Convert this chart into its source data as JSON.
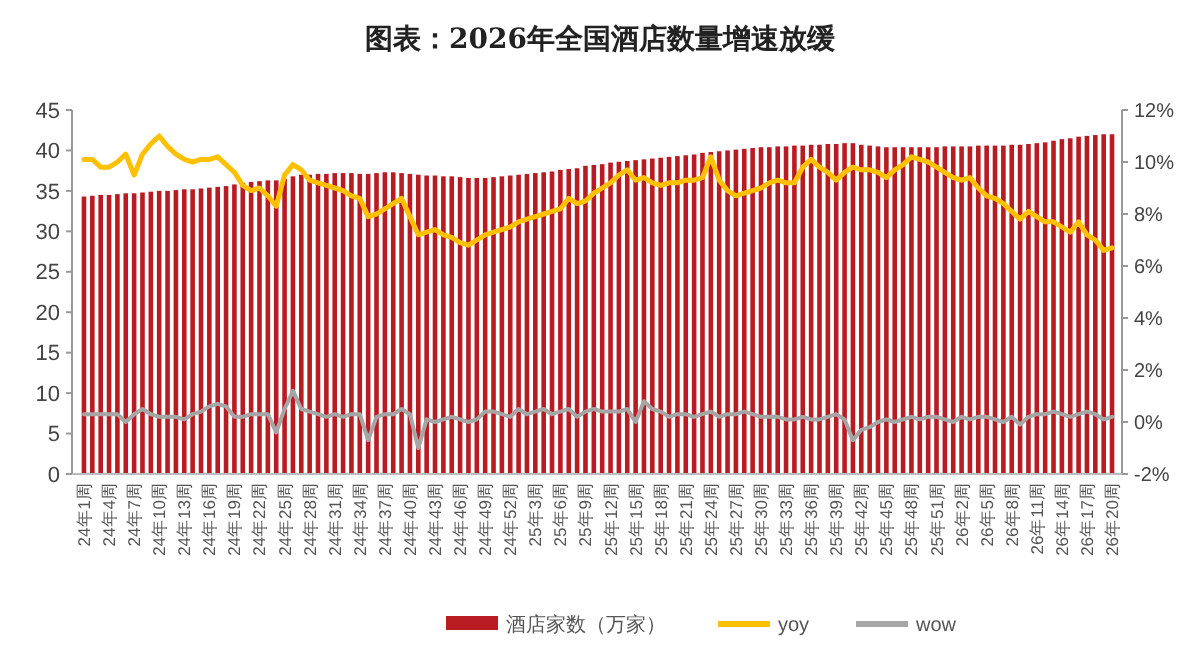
{
  "chart_data": {
    "type": "bar",
    "title": "图表：2026年全国酒店数量增速放缓",
    "categories": [
      "24年1周",
      null,
      null,
      "24年4周",
      null,
      null,
      "24年7周",
      null,
      null,
      "24年10周",
      null,
      null,
      "24年13周",
      null,
      null,
      "24年16周",
      null,
      null,
      "24年19周",
      null,
      null,
      "24年22周",
      null,
      null,
      "24年25周",
      null,
      null,
      "24年28周",
      null,
      null,
      "24年31周",
      null,
      null,
      "24年34周",
      null,
      null,
      "24年37周",
      null,
      null,
      "24年40周",
      null,
      null,
      "24年43周",
      null,
      null,
      "24年46周",
      null,
      null,
      "24年49周",
      null,
      null,
      "24年52周",
      null,
      null,
      "25年3周",
      null,
      null,
      "25年6周",
      null,
      null,
      "25年9周",
      null,
      null,
      "25年12周",
      null,
      null,
      "25年15周",
      null,
      null,
      "25年18周",
      null,
      null,
      "25年21周",
      null,
      null,
      "25年24周",
      null,
      null,
      "25年27周",
      null,
      null,
      "25年30周",
      null,
      null,
      "25年33周",
      null,
      null,
      "25年36周",
      null,
      null,
      "25年39周",
      null,
      null,
      "25年42周",
      null,
      null,
      "25年45周",
      null,
      null,
      "25年48周",
      null,
      null,
      "25年51周",
      null,
      null,
      "26年2周",
      null,
      null,
      "26年5周",
      null,
      null,
      "26年8周",
      null,
      null,
      "26年11周",
      null,
      null,
      "26年14周",
      null,
      null,
      "26年17周",
      null,
      null,
      "26年20周"
    ],
    "series": [
      {
        "name": "酒店家数（万家）",
        "color": "#b81c22",
        "values": [
          34.3,
          34.4,
          34.5,
          34.5,
          34.6,
          34.7,
          34.7,
          34.8,
          34.9,
          35.0,
          35.0,
          35.1,
          35.2,
          35.2,
          35.3,
          35.4,
          35.5,
          35.6,
          35.8,
          36.0,
          36.1,
          36.2,
          36.3,
          36.3,
          36.5,
          36.8,
          37.0,
          37.0,
          37.1,
          37.1,
          37.2,
          37.2,
          37.2,
          37.1,
          37.1,
          37.2,
          37.3,
          37.3,
          37.2,
          37.1,
          37.0,
          36.9,
          36.9,
          36.8,
          36.8,
          36.7,
          36.6,
          36.6,
          36.6,
          36.7,
          36.8,
          36.9,
          37.0,
          37.1,
          37.2,
          37.3,
          37.4,
          37.6,
          37.7,
          37.8,
          38.1,
          38.2,
          38.3,
          38.5,
          38.6,
          38.7,
          38.8,
          38.9,
          39.0,
          39.1,
          39.2,
          39.3,
          39.4,
          39.5,
          39.7,
          39.8,
          39.9,
          40.0,
          40.1,
          40.2,
          40.3,
          40.4,
          40.4,
          40.5,
          40.5,
          40.6,
          40.6,
          40.7,
          40.7,
          40.8,
          40.8,
          40.9,
          40.9,
          40.7,
          40.6,
          40.5,
          40.4,
          40.4,
          40.4,
          40.4,
          40.4,
          40.4,
          40.4,
          40.5,
          40.5,
          40.5,
          40.5,
          40.6,
          40.6,
          40.6,
          40.6,
          40.7,
          40.7,
          40.8,
          40.9,
          41.0,
          41.2,
          41.4,
          41.5,
          41.7,
          41.8,
          41.9,
          42.0,
          42.0
        ]
      },
      {
        "name": "yoy",
        "type": "line",
        "axis": "y2",
        "color": "#ffc000",
        "values": [
          10.1,
          10.1,
          9.8,
          9.8,
          10.0,
          10.3,
          9.5,
          10.3,
          10.7,
          11.0,
          10.6,
          10.3,
          10.1,
          10.0,
          10.1,
          10.1,
          10.2,
          9.9,
          9.6,
          9.1,
          8.9,
          9.0,
          8.7,
          8.3,
          9.5,
          9.9,
          9.7,
          9.3,
          9.2,
          9.1,
          9.0,
          8.9,
          8.7,
          8.6,
          7.9,
          8.0,
          8.2,
          8.4,
          8.6,
          7.9,
          7.2,
          7.3,
          7.4,
          7.2,
          7.1,
          6.9,
          6.8,
          7.0,
          7.2,
          7.3,
          7.4,
          7.5,
          7.7,
          7.8,
          7.9,
          8.0,
          8.1,
          8.2,
          8.6,
          8.4,
          8.5,
          8.8,
          9.0,
          9.2,
          9.5,
          9.7,
          9.3,
          9.4,
          9.2,
          9.1,
          9.2,
          9.2,
          9.3,
          9.3,
          9.4,
          10.2,
          9.3,
          8.9,
          8.7,
          8.8,
          8.9,
          9.0,
          9.2,
          9.3,
          9.2,
          9.2,
          9.8,
          10.1,
          9.8,
          9.6,
          9.3,
          9.6,
          9.8,
          9.7,
          9.7,
          9.6,
          9.4,
          9.7,
          9.9,
          10.2,
          10.1,
          10.0,
          9.8,
          9.6,
          9.4,
          9.3,
          9.4,
          9.0,
          8.7,
          8.6,
          8.4,
          8.1,
          7.8,
          8.1,
          7.9,
          7.7,
          7.7,
          7.5,
          7.3,
          7.7,
          7.2,
          7.0,
          6.6,
          6.7
        ]
      },
      {
        "name": "wow",
        "type": "line",
        "axis": "y2",
        "color": "#a6a6a6",
        "values": [
          0.3,
          0.3,
          0.3,
          0.3,
          0.3,
          0.0,
          0.3,
          0.5,
          0.3,
          0.2,
          0.2,
          0.2,
          0.1,
          0.3,
          0.4,
          0.6,
          0.7,
          0.6,
          0.2,
          0.2,
          0.3,
          0.3,
          0.3,
          -0.4,
          0.5,
          1.2,
          0.5,
          0.4,
          0.3,
          0.2,
          0.3,
          0.2,
          0.3,
          0.3,
          -0.7,
          0.2,
          0.3,
          0.3,
          0.5,
          0.3,
          -1.0,
          0.1,
          0.0,
          0.1,
          0.2,
          0.1,
          0.0,
          0.1,
          0.4,
          0.4,
          0.3,
          0.2,
          0.5,
          0.3,
          0.4,
          0.5,
          0.3,
          0.4,
          0.5,
          0.2,
          0.4,
          0.5,
          0.4,
          0.4,
          0.4,
          0.5,
          0.0,
          0.8,
          0.5,
          0.4,
          0.2,
          0.3,
          0.3,
          0.2,
          0.3,
          0.4,
          0.2,
          0.3,
          0.3,
          0.4,
          0.3,
          0.2,
          0.2,
          0.2,
          0.1,
          0.1,
          0.2,
          0.1,
          0.1,
          0.2,
          0.3,
          0.1,
          -0.7,
          -0.3,
          -0.2,
          0.0,
          0.1,
          0.0,
          0.1,
          0.2,
          0.1,
          0.2,
          0.2,
          0.1,
          0.0,
          0.2,
          0.1,
          0.2,
          0.2,
          0.1,
          0.0,
          0.2,
          -0.1,
          0.2,
          0.3,
          0.3,
          0.4,
          0.3,
          0.2,
          0.3,
          0.4,
          0.3,
          0.1,
          0.2
        ]
      }
    ],
    "ylim": [
      0,
      45
    ],
    "yticks": [
      0,
      5,
      10,
      15,
      20,
      25,
      30,
      35,
      40,
      45
    ],
    "y2lim": [
      -2,
      12
    ],
    "y2ticks": [
      {
        "value": -2,
        "label": "-2%"
      },
      {
        "value": 0,
        "label": "0%"
      },
      {
        "value": 2,
        "label": "2%"
      },
      {
        "value": 4,
        "label": "4%"
      },
      {
        "value": 6,
        "label": "6%"
      },
      {
        "value": 8,
        "label": "8%"
      },
      {
        "value": 10,
        "label": "10%"
      },
      {
        "value": 12,
        "label": "12%"
      }
    ],
    "legend": "bottom",
    "grid": false
  }
}
